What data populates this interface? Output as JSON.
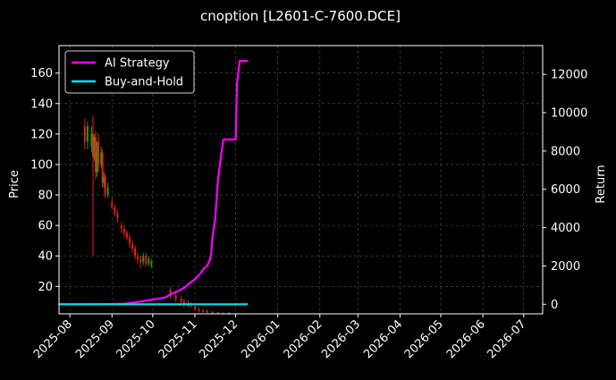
{
  "colors": {
    "background": "#000000",
    "axes": "#ffffff",
    "grid": "#555555",
    "strategy": "#ff00ff",
    "buy_hold": "#00e5ee",
    "candle_up": "#1f9e1f",
    "candle_down": "#e8200c"
  },
  "chart_data": {
    "type": "line",
    "title": "cnoption [L2601-C-7600.DCE]",
    "xlabel": "",
    "ylabel": "Price",
    "y2label": "Return",
    "grid": true,
    "legend_position": "upper-left",
    "x_ticks": [
      "2025-08",
      "2025-09",
      "2025-10",
      "2025-11",
      "2025-12",
      "2026-01",
      "2026-02",
      "2026-03",
      "2026-04",
      "2026-05",
      "2026-06",
      "2026-07"
    ],
    "xlim": [
      "2025-07-24",
      "2026-07-15"
    ],
    "ylim": [
      2,
      178
    ],
    "y_ticks": [
      20,
      40,
      60,
      80,
      100,
      120,
      140,
      160
    ],
    "y2lim": [
      -500,
      13500
    ],
    "y2_ticks": [
      0,
      2000,
      4000,
      6000,
      8000,
      10000,
      12000
    ],
    "series": [
      {
        "name": "AI Strategy",
        "axis": "right",
        "x": [
          "2025-07-24",
          "2025-08-20",
          "2025-09-10",
          "2025-09-20",
          "2025-10-01",
          "2025-10-10",
          "2025-10-15",
          "2025-10-20",
          "2025-10-25",
          "2025-10-28",
          "2025-11-01",
          "2025-11-05",
          "2025-11-08",
          "2025-11-10",
          "2025-11-12",
          "2025-11-13",
          "2025-11-14",
          "2025-11-16",
          "2025-11-18",
          "2025-11-20",
          "2025-11-22",
          "2025-12-01",
          "2025-12-02",
          "2025-12-04",
          "2025-12-10"
        ],
        "values": [
          0,
          0,
          20,
          120,
          250,
          350,
          550,
          700,
          900,
          1100,
          1300,
          1600,
          1900,
          2000,
          2300,
          2600,
          3500,
          4500,
          6500,
          7600,
          8600,
          8600,
          11500,
          12700,
          12700
        ]
      },
      {
        "name": "Buy-and-Hold",
        "axis": "right",
        "x": [
          "2025-07-24",
          "2025-12-10"
        ],
        "values": [
          0,
          0
        ]
      }
    ],
    "candles": {
      "axis": "left",
      "date": [
        "2025-08-12",
        "2025-08-14",
        "2025-08-17",
        "2025-08-18",
        "2025-08-19",
        "2025-08-20",
        "2025-08-21",
        "2025-08-22",
        "2025-08-24",
        "2025-08-25",
        "2025-08-26",
        "2025-08-27",
        "2025-08-29",
        "2025-09-01",
        "2025-09-03",
        "2025-09-05",
        "2025-09-08",
        "2025-09-10",
        "2025-09-12",
        "2025-09-14",
        "2025-09-16",
        "2025-09-18",
        "2025-09-20",
        "2025-09-22",
        "2025-09-24",
        "2025-09-26",
        "2025-09-28",
        "2025-09-30",
        "2025-10-14",
        "2025-10-18",
        "2025-10-22",
        "2025-10-24",
        "2025-10-27",
        "2025-10-29",
        "2025-11-01",
        "2025-11-04",
        "2025-11-07",
        "2025-11-10",
        "2025-11-14",
        "2025-11-18",
        "2025-11-22",
        "2025-11-26"
      ],
      "open": [
        125,
        115,
        112,
        120,
        105,
        118,
        95,
        115,
        100,
        108,
        88,
        92,
        80,
        75,
        72,
        68,
        60,
        58,
        55,
        52,
        48,
        45,
        40,
        38,
        36,
        40,
        35,
        34,
        18,
        14,
        12,
        10,
        8,
        9,
        7,
        5,
        4,
        4,
        3,
        3,
        2.5,
        2
      ],
      "close": [
        115,
        125,
        120,
        105,
        118,
        95,
        110,
        100,
        108,
        88,
        92,
        80,
        85,
        72,
        68,
        65,
        58,
        55,
        52,
        48,
        45,
        40,
        38,
        36,
        40,
        35,
        38,
        36,
        14,
        12,
        10,
        8,
        9,
        7,
        5,
        4,
        4,
        3,
        3,
        2.5,
        2,
        2
      ],
      "high": [
        130,
        128,
        125,
        132,
        120,
        122,
        115,
        120,
        112,
        110,
        95,
        94,
        88,
        78,
        74,
        70,
        62,
        60,
        57,
        54,
        50,
        47,
        42,
        40,
        42,
        42,
        40,
        38,
        20,
        16,
        14,
        12,
        11,
        10,
        8,
        6,
        5,
        5,
        4,
        3.5,
        3,
        3
      ],
      "low": [
        110,
        110,
        108,
        40,
        102,
        90,
        92,
        95,
        98,
        85,
        85,
        78,
        78,
        70,
        66,
        62,
        55,
        52,
        50,
        45,
        42,
        38,
        35,
        32,
        34,
        33,
        33,
        32,
        12,
        10,
        8,
        6,
        6,
        6,
        4,
        3,
        3,
        2.5,
        2,
        2,
        1.8,
        1.5
      ]
    }
  }
}
